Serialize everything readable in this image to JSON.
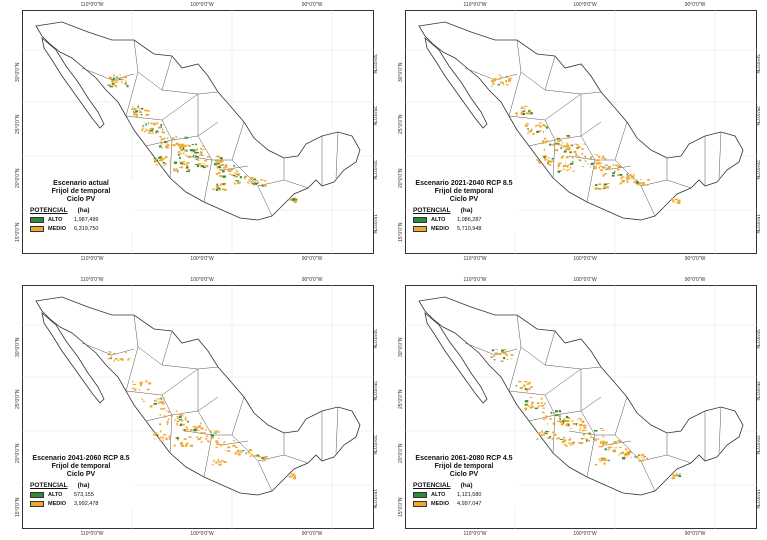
{
  "colors": {
    "alto": "#2e8b3a",
    "medio": "#f0a830",
    "border": "#333333"
  },
  "ticks": {
    "lon": [
      "110°0'0\"W",
      "100°0'0\"W",
      "90°0'0\"W"
    ],
    "lat": [
      "30°0'0\"N",
      "25°0'0\"N",
      "20°0'0\"N",
      "15°0'0\"N"
    ]
  },
  "panels": [
    {
      "title": [
        "Escenario actual",
        "Frijol de temporal",
        "Ciclo PV"
      ],
      "legend_header": [
        "POTENCIAL",
        "(ha)"
      ],
      "rows": [
        {
          "label": "ALTO",
          "value": "1,987,499"
        },
        {
          "label": "MEDIO",
          "value": "6,319,750"
        }
      ]
    },
    {
      "title": [
        "Escenario 2021-2040 RCP 8.5",
        "Frijol de temporal",
        "Ciclo PV"
      ],
      "legend_header": [
        "POTENCIAL",
        "(ha)"
      ],
      "rows": [
        {
          "label": "ALTO",
          "value": "1,086,287"
        },
        {
          "label": "MEDIO",
          "value": "5,710,948"
        }
      ]
    },
    {
      "title": [
        "Escenario 2041-2060 RCP 8.5",
        "Frijol de temporal",
        "Ciclo PV"
      ],
      "legend_header": [
        "POTENCIAL",
        "(ha)"
      ],
      "rows": [
        {
          "label": "ALTO",
          "value": "573,155"
        },
        {
          "label": "MEDIO",
          "value": "3,992,478"
        }
      ]
    },
    {
      "title": [
        "Escenario 2061-2080 RCP 4.5",
        "Frijol de temporal",
        "Ciclo PV"
      ],
      "legend_header": [
        "POTENCIAL",
        "(ha)"
      ],
      "rows": [
        {
          "label": "ALTO",
          "value": "1,121,580"
        },
        {
          "label": "MEDIO",
          "value": "4,997,047"
        }
      ]
    }
  ]
}
